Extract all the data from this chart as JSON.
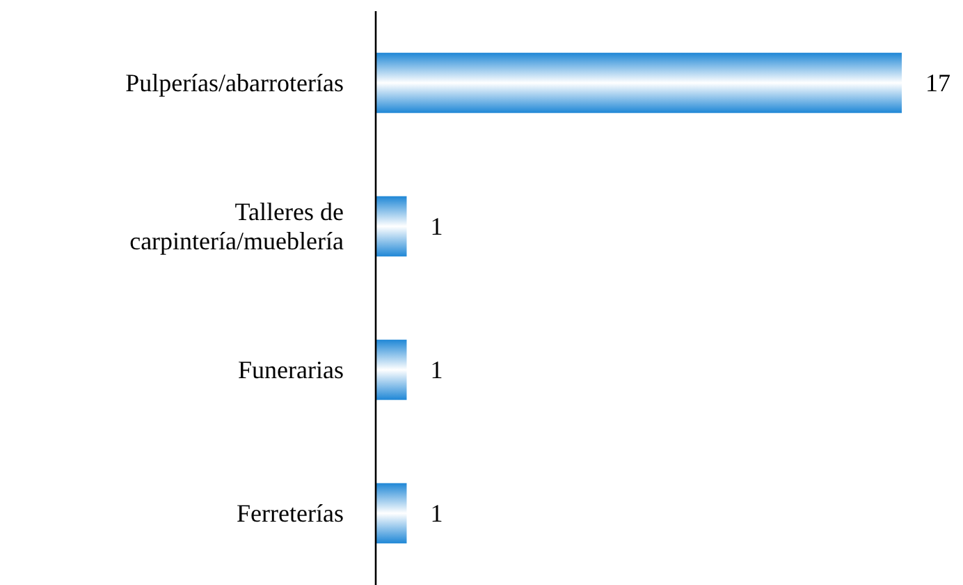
{
  "chart_data": {
    "type": "bar",
    "orientation": "horizontal",
    "categories": [
      "Pulperías/abarroterías",
      "Talleres de carpintería/mueblería",
      "Funerarias",
      "Ferreterías"
    ],
    "values": [
      17,
      1,
      1,
      1
    ],
    "color": "#1f87d6",
    "data_labels": true
  }
}
